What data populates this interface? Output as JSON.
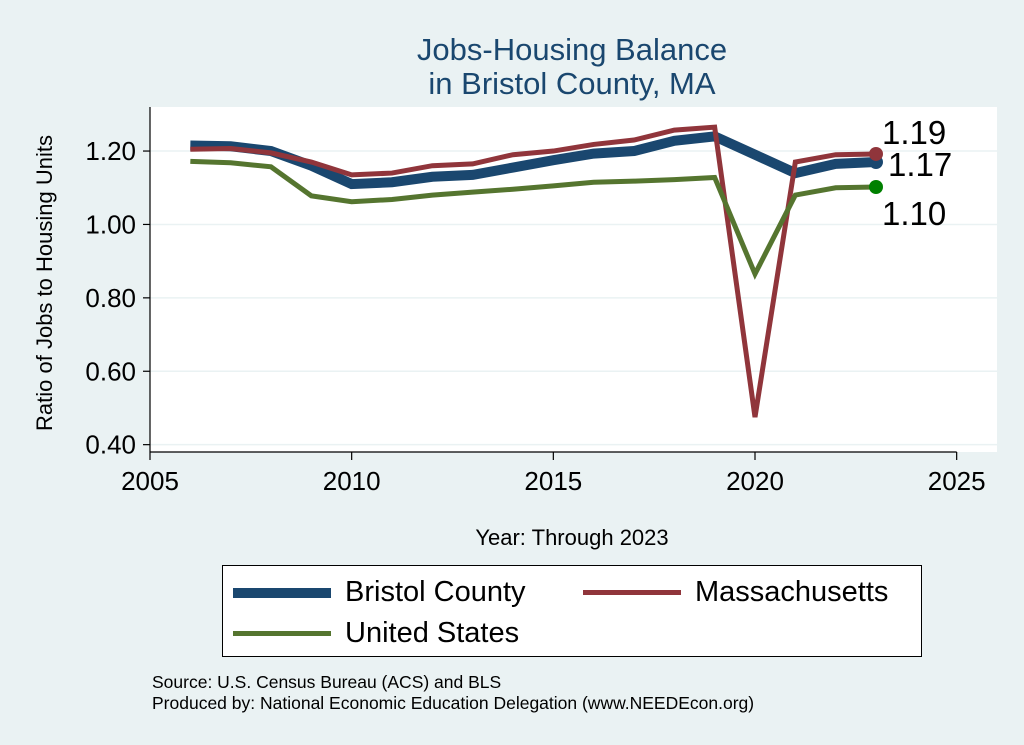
{
  "chart_data": {
    "type": "line",
    "title": [
      "Jobs-Housing Balance",
      "in Bristol County, MA"
    ],
    "xlabel": "Year: Through 2023",
    "ylabel": "Ratio of Jobs to Housing Units",
    "xlim": [
      2005,
      2026
    ],
    "ylim": [
      0.38,
      1.32
    ],
    "xticks": [
      2005,
      2010,
      2015,
      2020,
      2025
    ],
    "yticks": [
      0.4,
      0.6,
      0.8,
      1.0,
      1.2
    ],
    "ytick_labels": [
      "0.40",
      "0.60",
      "0.80",
      "1.00",
      "1.20"
    ],
    "grid": true,
    "x": [
      2006,
      2007,
      2008,
      2009,
      2010,
      2011,
      2012,
      2013,
      2014,
      2015,
      2016,
      2017,
      2018,
      2019,
      2020,
      2021,
      2022,
      2023
    ],
    "series": [
      {
        "name": "Bristol County",
        "color": "#1a476f",
        "width": 10,
        "values": [
          1.215,
          1.213,
          1.2,
          1.16,
          1.11,
          1.115,
          1.13,
          1.135,
          1.155,
          1.175,
          1.193,
          1.2,
          1.228,
          1.24,
          1.19,
          1.14,
          1.165,
          1.17
        ],
        "end_label": "1.17"
      },
      {
        "name": "Massachusetts",
        "color": "#90353b",
        "width": 5,
        "values": [
          1.205,
          1.207,
          1.195,
          1.17,
          1.135,
          1.14,
          1.16,
          1.165,
          1.19,
          1.2,
          1.218,
          1.23,
          1.257,
          1.265,
          0.475,
          1.17,
          1.19,
          1.192
        ],
        "end_label": "1.19"
      },
      {
        "name": "United States",
        "color": "#55752f",
        "width": 5,
        "values": [
          1.172,
          1.168,
          1.157,
          1.078,
          1.062,
          1.068,
          1.08,
          1.088,
          1.096,
          1.105,
          1.115,
          1.118,
          1.122,
          1.128,
          0.865,
          1.08,
          1.1,
          1.102
        ],
        "end_label": "1.10"
      }
    ],
    "end_marker_colors": [
      "#1a476f",
      "#90353b",
      "#008000"
    ],
    "legend": {
      "position": "bottom",
      "items": [
        "Bristol County",
        "Massachusetts",
        "United States"
      ]
    }
  },
  "footer": {
    "source": "Source: U.S. Census Bureau (ACS) and BLS",
    "produced_by": "Produced by: National Economic Education Delegation (www.NEEDEcon.org)"
  },
  "colors": {
    "background": "#eaf2f3",
    "plot_background": "#ffffff",
    "title": "#1a476f",
    "grid": "#eaf2f3"
  }
}
